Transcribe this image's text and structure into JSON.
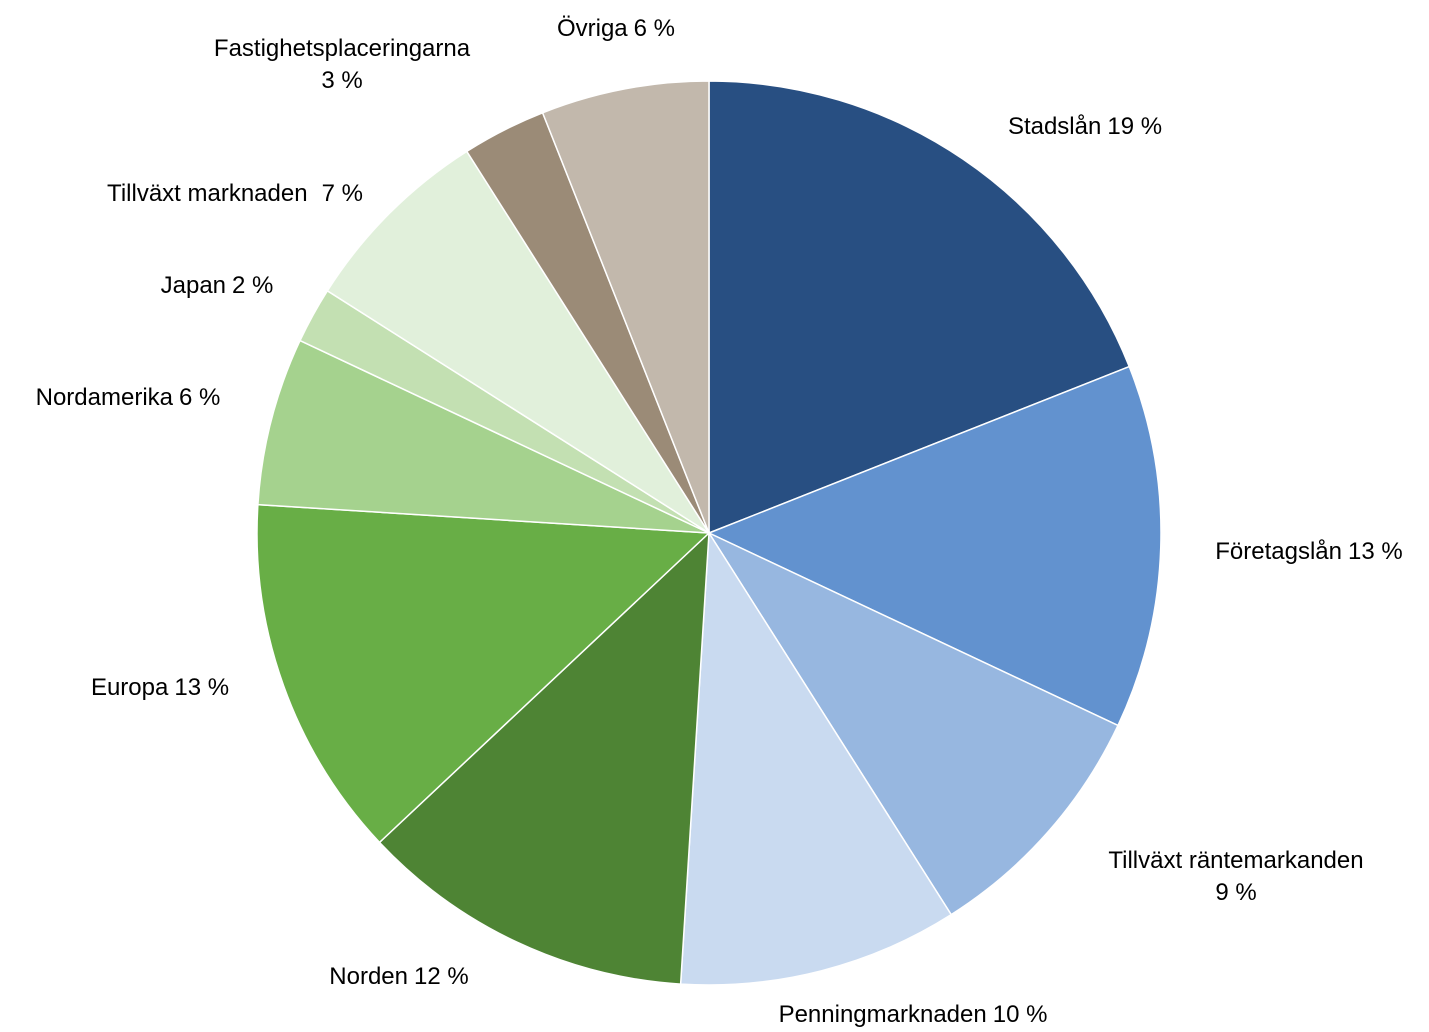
{
  "chart_data": {
    "type": "pie",
    "categories": [
      "Stadslån",
      "Företagslån",
      "Tillväxt räntemarkanden",
      "Penningmarknaden",
      "Norden",
      "Europa",
      "Nordamerika",
      "Japan",
      "Tillväxt marknaden",
      "Fastighetsplaceringarna",
      "Övriga"
    ],
    "values": [
      19,
      13,
      9,
      10,
      12,
      13,
      6,
      2,
      7,
      3,
      6
    ],
    "value_labels": [
      "19 %",
      "13 %",
      "9 %",
      "10 %",
      "12 %",
      "13 %",
      "6 %",
      "2 %",
      "7 %",
      "3 %",
      "6 %"
    ],
    "colors": [
      "#284f82",
      "#6292cf",
      "#97b7e0",
      "#c9daf0",
      "#4e8434",
      "#68ae46",
      "#a5d28e",
      "#c3e0b2",
      "#e1f0db",
      "#9b8b77",
      "#c2b8ac"
    ]
  }
}
